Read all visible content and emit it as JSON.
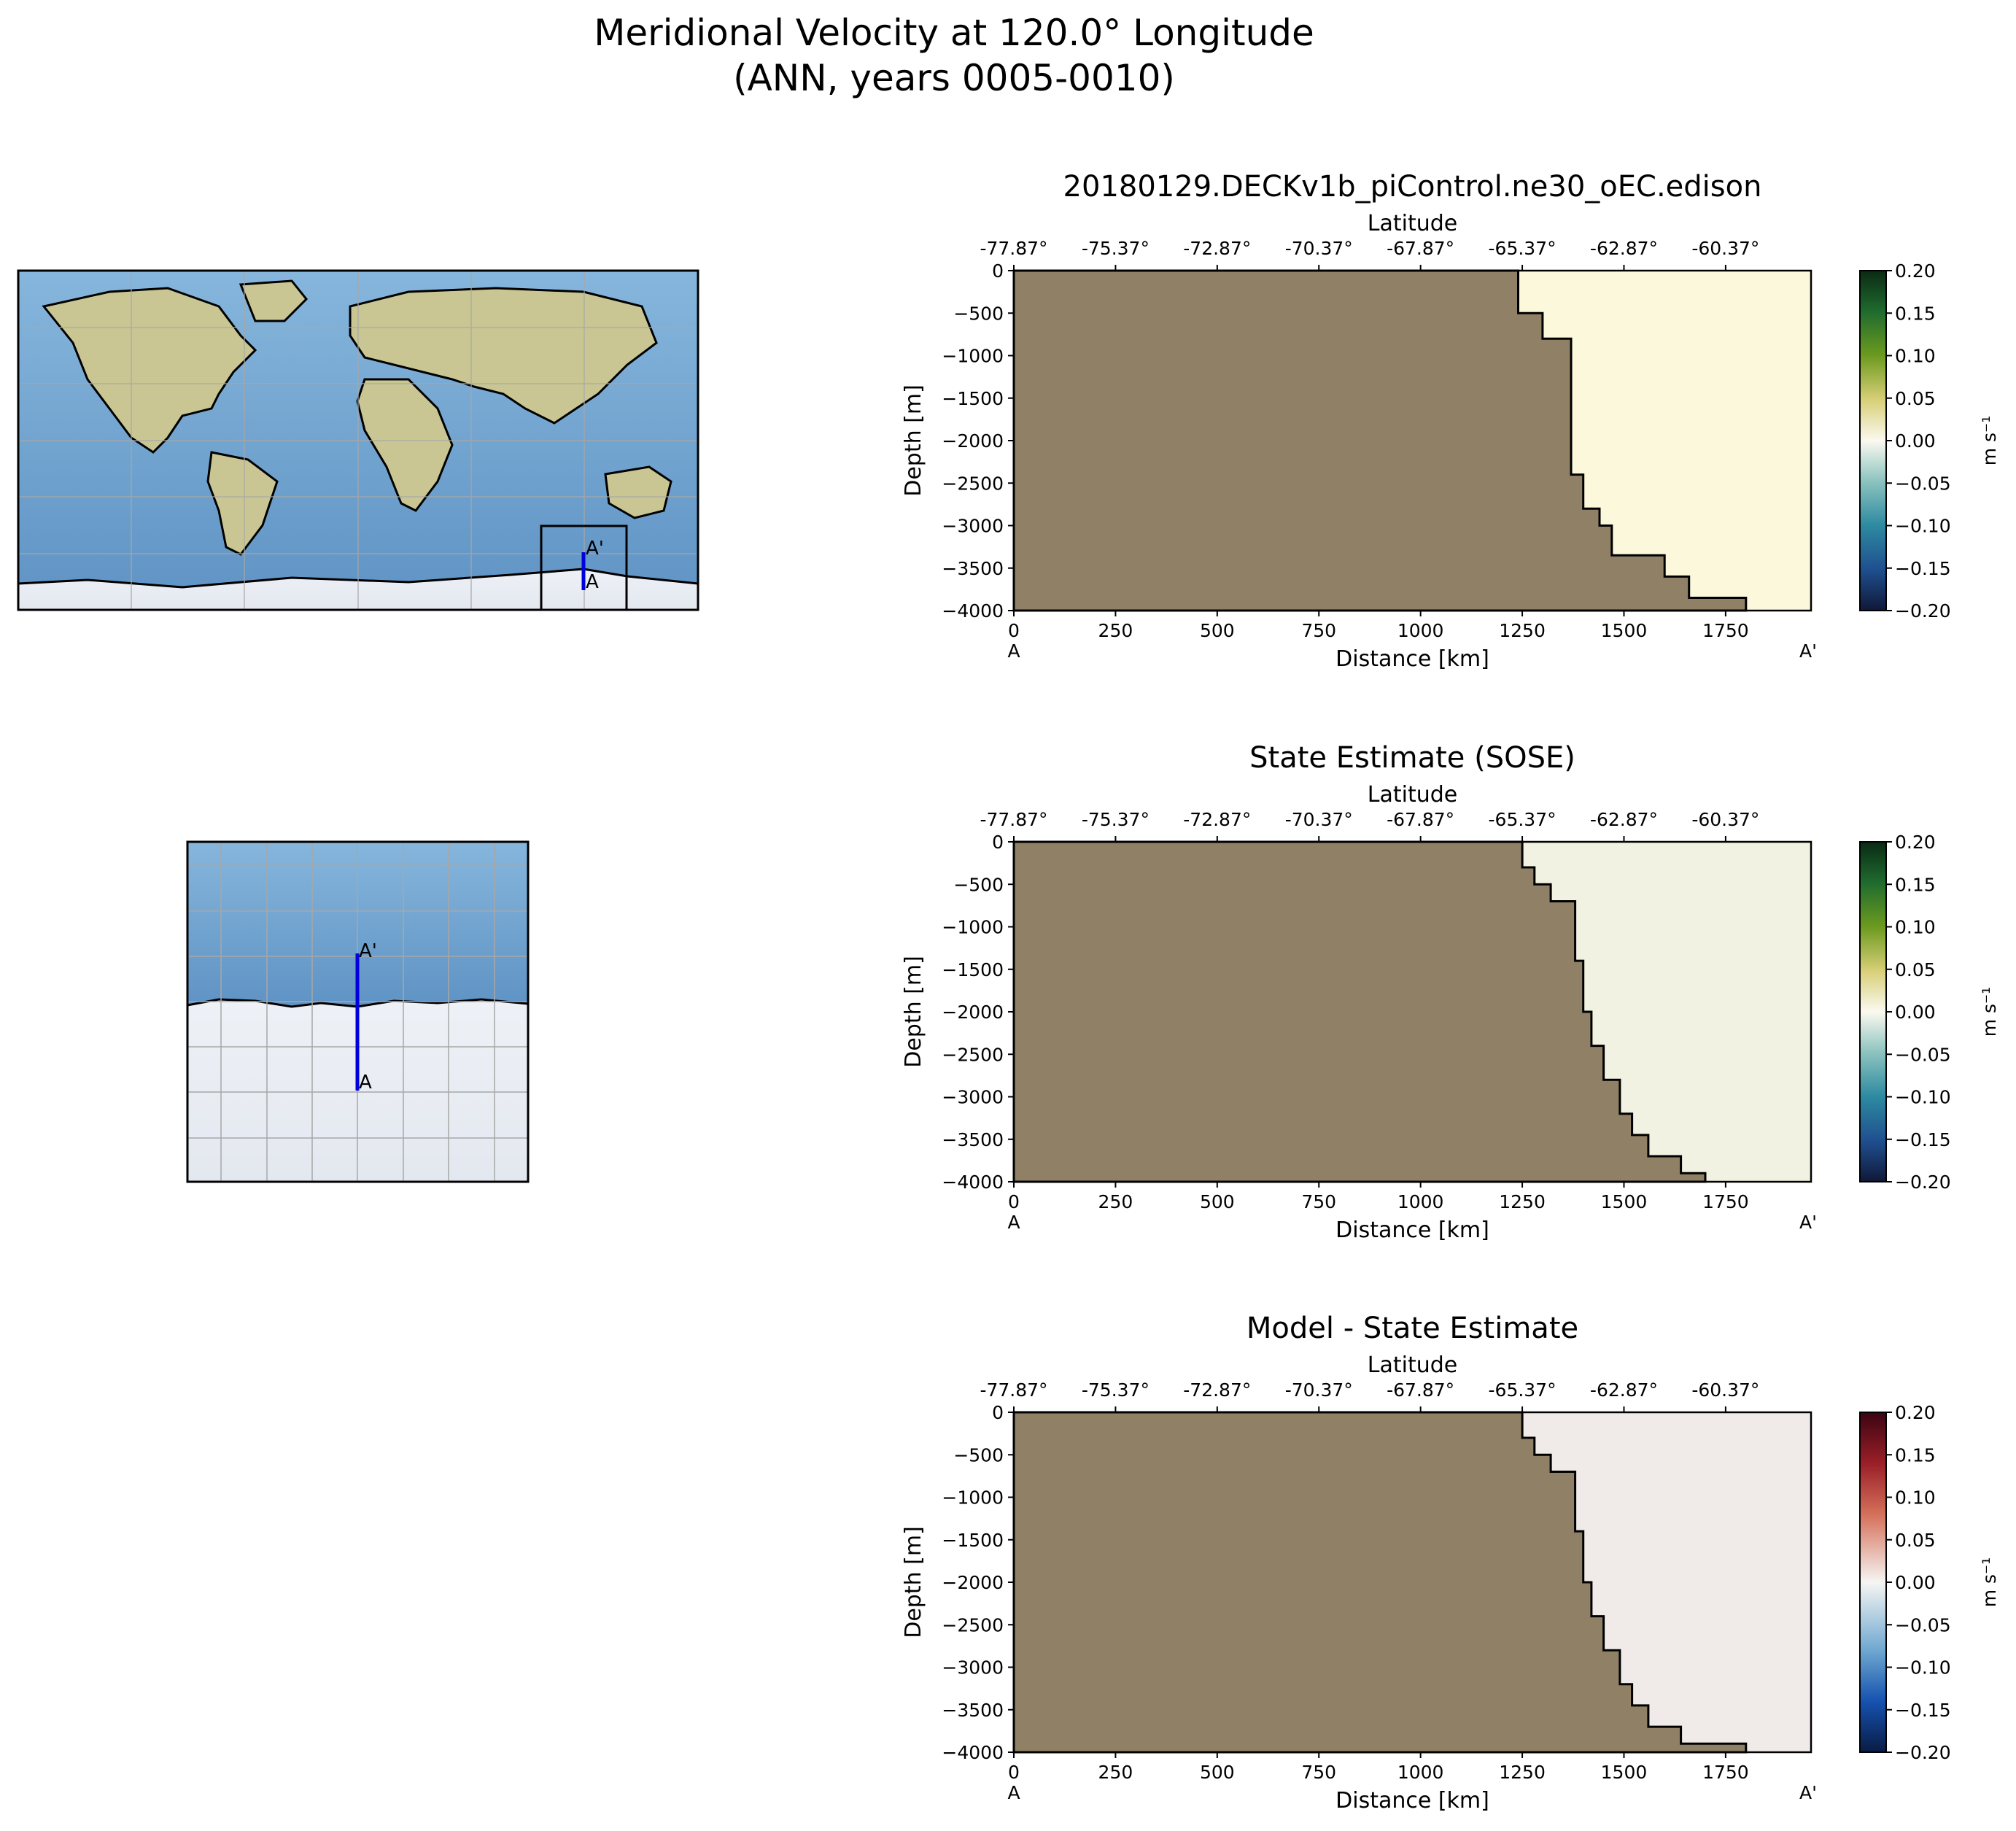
{
  "figure": {
    "title_line1": "Meridional Velocity at 120.0° Longitude",
    "title_line2": "(ANN, years 0005-0010)"
  },
  "maps": {
    "global": {
      "view": "global",
      "projection": "PlateCarree",
      "section_line_color": "#0000dd",
      "labels": [
        "A",
        "A'"
      ]
    },
    "inset": {
      "view": "zoom on transect",
      "section_line_color": "#0000dd",
      "labels": [
        "A",
        "A'"
      ]
    }
  },
  "chart_data": [
    {
      "type": "heatmap",
      "title": "20180129.DECKv1b_piControl.ne30_oEC.edison",
      "xlabel": "Distance [km]",
      "xlabel_top": "Latitude",
      "ylabel": "Depth [m]",
      "x_ticks": [
        0,
        250,
        500,
        750,
        1000,
        1250,
        1500,
        1750
      ],
      "x_tick_labels": [
        "0",
        "250",
        "500",
        "750",
        "1000",
        "1250",
        "1500",
        "1750"
      ],
      "top_tick_labels": [
        "-77.87°",
        "-75.37°",
        "-72.87°",
        "-70.37°",
        "-67.87°",
        "-65.37°",
        "-62.87°",
        "-60.37°"
      ],
      "y_ticks": [
        0,
        -500,
        -1000,
        -1500,
        -2000,
        -2500,
        -3000,
        -3500,
        -4000
      ],
      "y_tick_labels": [
        "0",
        "−500",
        "−1000",
        "−1500",
        "−2000",
        "−2500",
        "−3000",
        "−3500",
        "−4000"
      ],
      "xlim": [
        0,
        1960
      ],
      "ylim": [
        -4000,
        0
      ],
      "endpoint_labels": [
        "A",
        "A'"
      ],
      "land_color": "#8f8066",
      "field_color": "#fbf8dc",
      "colormap": "green-yellow-white-teal-blue",
      "colorbar": {
        "label": "m s⁻¹",
        "min": -0.2,
        "max": 0.2,
        "tick_labels": [
          "0.20",
          "0.15",
          "0.10",
          "0.05",
          "0.00",
          "−0.05",
          "−0.10",
          "−0.15",
          "−0.20"
        ]
      },
      "bathymetry": [
        [
          1240,
          0
        ],
        [
          1240,
          -500
        ],
        [
          1300,
          -500
        ],
        [
          1300,
          -800
        ],
        [
          1370,
          -800
        ],
        [
          1370,
          -2400
        ],
        [
          1400,
          -2400
        ],
        [
          1400,
          -2800
        ],
        [
          1440,
          -2800
        ],
        [
          1440,
          -3000
        ],
        [
          1470,
          -3000
        ],
        [
          1470,
          -3350
        ],
        [
          1600,
          -3350
        ],
        [
          1600,
          -3600
        ],
        [
          1660,
          -3600
        ],
        [
          1660,
          -3850
        ],
        [
          1800,
          -3850
        ],
        [
          1800,
          -4000
        ]
      ]
    },
    {
      "type": "heatmap",
      "title": "State Estimate (SOSE)",
      "xlabel": "Distance [km]",
      "xlabel_top": "Latitude",
      "ylabel": "Depth [m]",
      "x_ticks": [
        0,
        250,
        500,
        750,
        1000,
        1250,
        1500,
        1750
      ],
      "x_tick_labels": [
        "0",
        "250",
        "500",
        "750",
        "1000",
        "1250",
        "1500",
        "1750"
      ],
      "top_tick_labels": [
        "-77.87°",
        "-75.37°",
        "-72.87°",
        "-70.37°",
        "-67.87°",
        "-65.37°",
        "-62.87°",
        "-60.37°"
      ],
      "y_ticks": [
        0,
        -500,
        -1000,
        -1500,
        -2000,
        -2500,
        -3000,
        -3500,
        -4000
      ],
      "y_tick_labels": [
        "0",
        "−500",
        "−1000",
        "−1500",
        "−2000",
        "−2500",
        "−3000",
        "−3500",
        "−4000"
      ],
      "xlim": [
        0,
        1960
      ],
      "ylim": [
        -4000,
        0
      ],
      "endpoint_labels": [
        "A",
        "A'"
      ],
      "land_color": "#8f8066",
      "field_color": "#f2f2e2",
      "colormap": "green-yellow-white-teal-blue",
      "colorbar": {
        "label": "m s⁻¹",
        "min": -0.2,
        "max": 0.2,
        "tick_labels": [
          "0.20",
          "0.15",
          "0.10",
          "0.05",
          "0.00",
          "−0.05",
          "−0.10",
          "−0.15",
          "−0.20"
        ]
      },
      "bathymetry": [
        [
          1250,
          0
        ],
        [
          1250,
          -300
        ],
        [
          1280,
          -300
        ],
        [
          1280,
          -500
        ],
        [
          1320,
          -500
        ],
        [
          1320,
          -700
        ],
        [
          1380,
          -700
        ],
        [
          1380,
          -1400
        ],
        [
          1400,
          -1400
        ],
        [
          1400,
          -2000
        ],
        [
          1420,
          -2000
        ],
        [
          1420,
          -2400
        ],
        [
          1450,
          -2400
        ],
        [
          1450,
          -2800
        ],
        [
          1490,
          -2800
        ],
        [
          1490,
          -3200
        ],
        [
          1520,
          -3200
        ],
        [
          1520,
          -3450
        ],
        [
          1560,
          -3450
        ],
        [
          1560,
          -3700
        ],
        [
          1640,
          -3700
        ],
        [
          1640,
          -3900
        ],
        [
          1700,
          -3900
        ],
        [
          1700,
          -4000
        ]
      ]
    },
    {
      "type": "heatmap",
      "title": "Model - State Estimate",
      "xlabel": "Distance [km]",
      "xlabel_top": "Latitude",
      "ylabel": "Depth [m]",
      "x_ticks": [
        0,
        250,
        500,
        750,
        1000,
        1250,
        1500,
        1750
      ],
      "x_tick_labels": [
        "0",
        "250",
        "500",
        "750",
        "1000",
        "1250",
        "1500",
        "1750"
      ],
      "top_tick_labels": [
        "-77.87°",
        "-75.37°",
        "-72.87°",
        "-70.37°",
        "-67.87°",
        "-65.37°",
        "-62.87°",
        "-60.37°"
      ],
      "y_ticks": [
        0,
        -500,
        -1000,
        -1500,
        -2000,
        -2500,
        -3000,
        -3500,
        -4000
      ],
      "y_tick_labels": [
        "0",
        "−500",
        "−1000",
        "−1500",
        "−2000",
        "−2500",
        "−3000",
        "−3500",
        "−4000"
      ],
      "xlim": [
        0,
        1960
      ],
      "ylim": [
        -4000,
        0
      ],
      "endpoint_labels": [
        "A",
        "A'"
      ],
      "land_color": "#8f8066",
      "field_color": "#f0ebe8",
      "colormap": "red-white-blue",
      "colorbar": {
        "label": "m s⁻¹",
        "min": -0.2,
        "max": 0.2,
        "tick_labels": [
          "0.20",
          "0.15",
          "0.10",
          "0.05",
          "0.00",
          "−0.05",
          "−0.10",
          "−0.15",
          "−0.20"
        ]
      },
      "bathymetry": [
        [
          1250,
          0
        ],
        [
          1250,
          -300
        ],
        [
          1280,
          -300
        ],
        [
          1280,
          -500
        ],
        [
          1320,
          -500
        ],
        [
          1320,
          -700
        ],
        [
          1380,
          -700
        ],
        [
          1380,
          -1400
        ],
        [
          1400,
          -1400
        ],
        [
          1400,
          -2000
        ],
        [
          1420,
          -2000
        ],
        [
          1420,
          -2400
        ],
        [
          1450,
          -2400
        ],
        [
          1450,
          -2800
        ],
        [
          1490,
          -2800
        ],
        [
          1490,
          -3200
        ],
        [
          1520,
          -3200
        ],
        [
          1520,
          -3450
        ],
        [
          1560,
          -3450
        ],
        [
          1560,
          -3700
        ],
        [
          1640,
          -3700
        ],
        [
          1640,
          -3900
        ],
        [
          1800,
          -3900
        ],
        [
          1800,
          -4000
        ]
      ]
    }
  ]
}
